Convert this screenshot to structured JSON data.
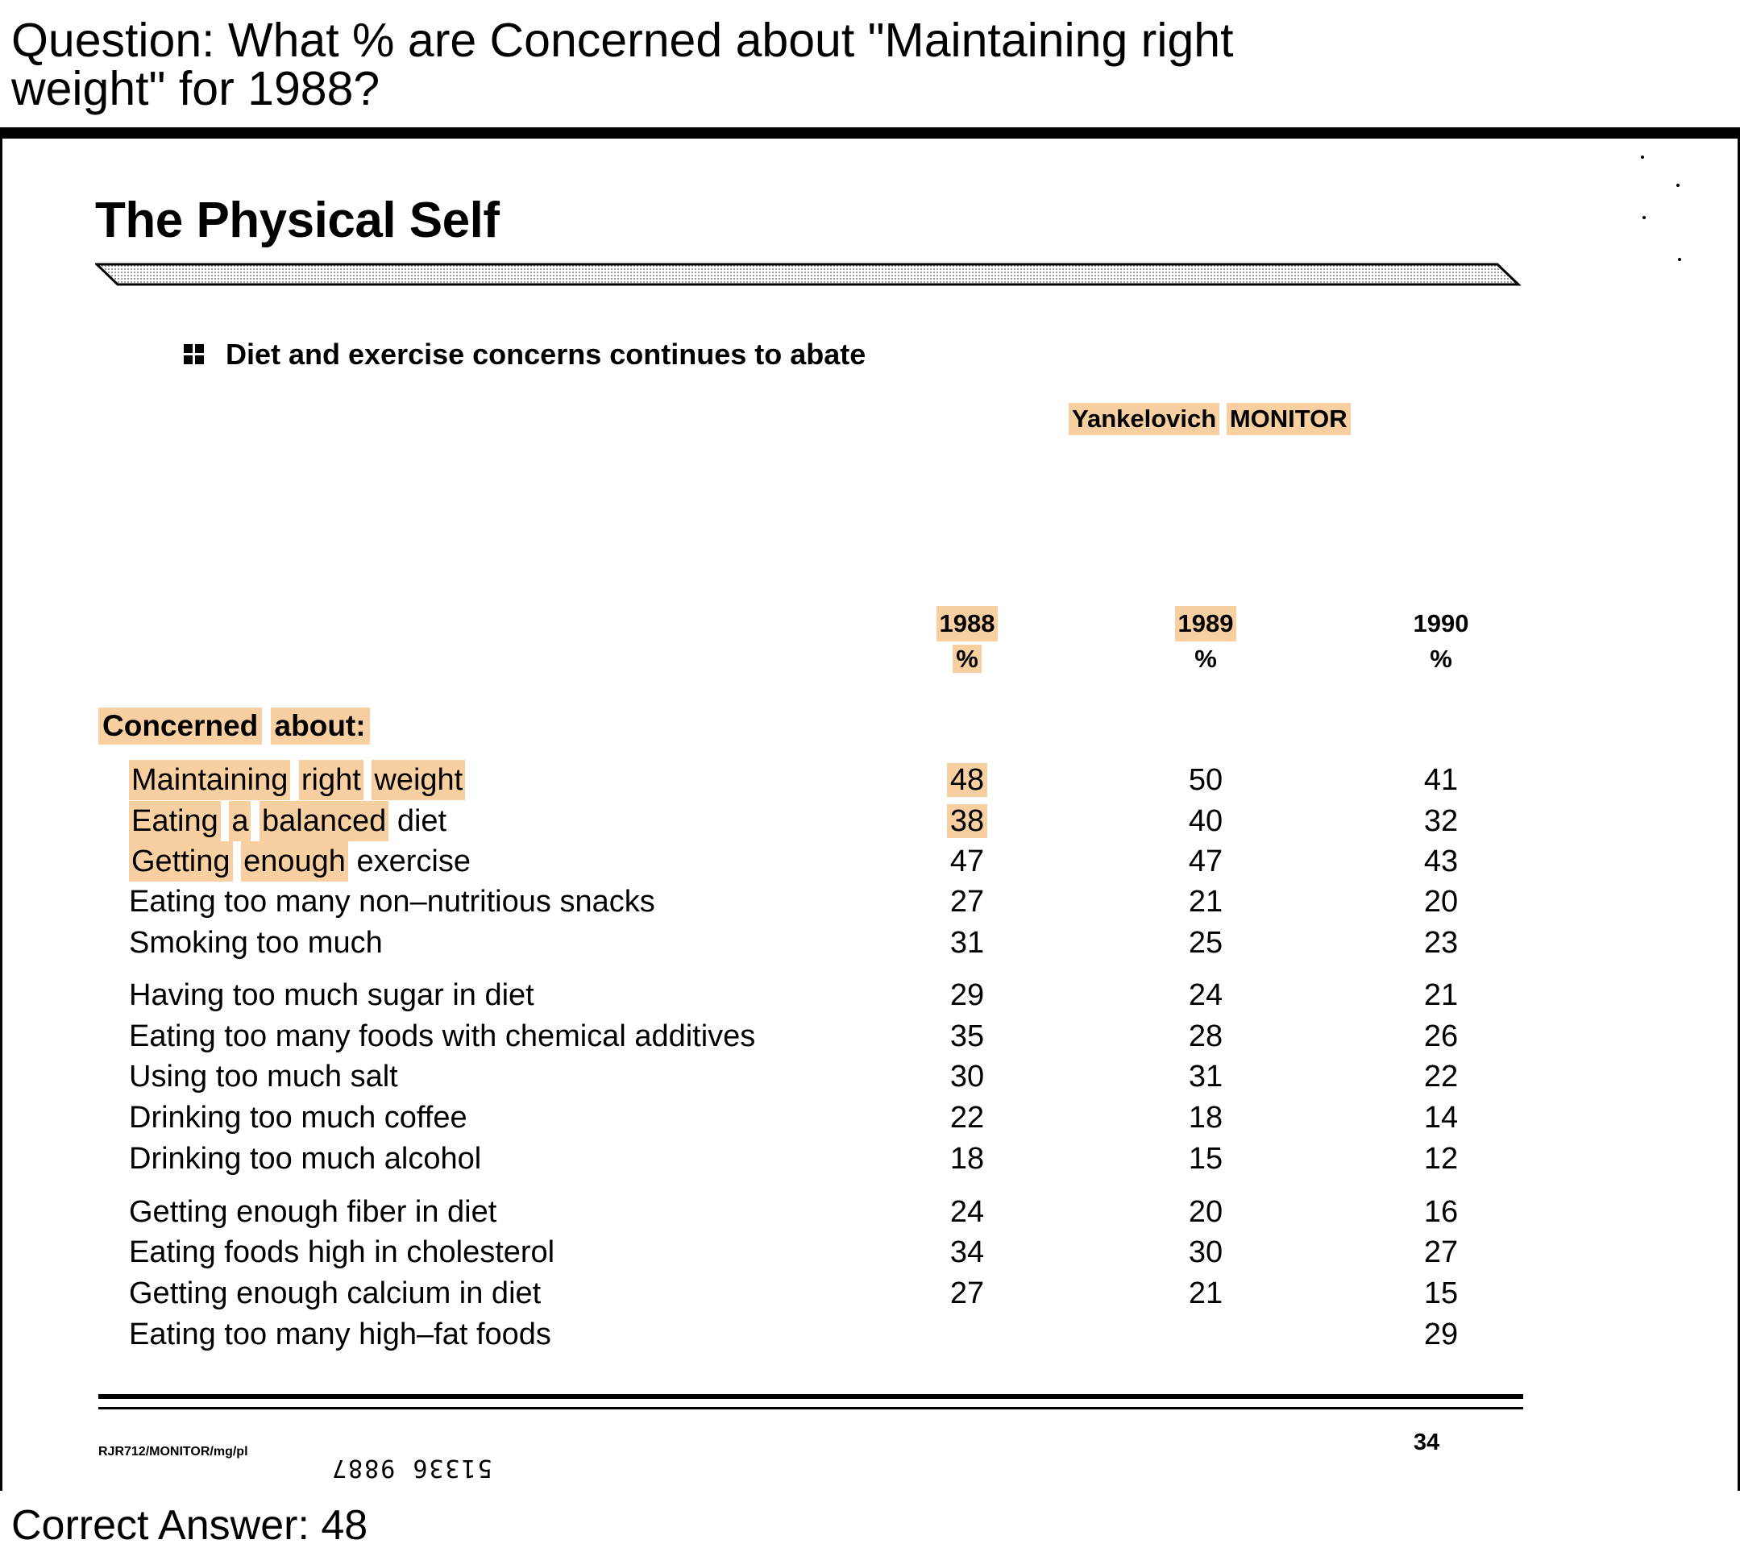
{
  "question": "Question: What % are Concerned about \"Maintaining right weight\" for 1988?",
  "answer": "Correct Answer: 48",
  "document": {
    "title": "The Physical Self",
    "subtitle": "Diet and exercise concerns continues to abate",
    "source": [
      "Yankelovich",
      "MONITOR"
    ],
    "columns": [
      {
        "year": "1988",
        "unit": "%"
      },
      {
        "year": "1989",
        "unit": "%"
      },
      {
        "year": "1990",
        "unit": "%"
      }
    ],
    "section_label": [
      "Concerned",
      "about:"
    ],
    "rows": [
      {
        "label": [
          "Maintaining",
          "right",
          "weight"
        ],
        "v1988": "48",
        "v1989": "50",
        "v1990": "41"
      },
      {
        "label": [
          "Eating",
          "a",
          "balanced",
          "diet"
        ],
        "v1988": "38",
        "v1989": "40",
        "v1990": "32"
      },
      {
        "label": [
          "Getting",
          "enough",
          "exercise"
        ],
        "v1988": "47",
        "v1989": "47",
        "v1990": "43"
      },
      {
        "label": [
          "Eating too many non–nutritious snacks"
        ],
        "v1988": "27",
        "v1989": "21",
        "v1990": "20"
      },
      {
        "label": [
          "Smoking too much"
        ],
        "v1988": "31",
        "v1989": "25",
        "v1990": "23"
      },
      {
        "label": [
          "Having too much sugar in diet"
        ],
        "v1988": "29",
        "v1989": "24",
        "v1990": "21"
      },
      {
        "label": [
          "Eating too many foods with chemical additives"
        ],
        "v1988": "35",
        "v1989": "28",
        "v1990": "26"
      },
      {
        "label": [
          "Using too much salt"
        ],
        "v1988": "30",
        "v1989": "31",
        "v1990": "22"
      },
      {
        "label": [
          "Drinking too much coffee"
        ],
        "v1988": "22",
        "v1989": "18",
        "v1990": "14"
      },
      {
        "label": [
          "Drinking too much alcohol"
        ],
        "v1988": "18",
        "v1989": "15",
        "v1990": "12"
      },
      {
        "label": [
          "Getting enough fiber in diet"
        ],
        "v1988": "24",
        "v1989": "20",
        "v1990": "16"
      },
      {
        "label": [
          "Eating foods high in cholesterol"
        ],
        "v1988": "34",
        "v1989": "30",
        "v1990": "27"
      },
      {
        "label": [
          "Getting enough calcium in diet"
        ],
        "v1988": "27",
        "v1989": "21",
        "v1990": "15"
      },
      {
        "label": [
          "Eating too many high–fat foods"
        ],
        "v1988": "",
        "v1989": "",
        "v1990": "29"
      }
    ],
    "footer_code": "RJR712/MONITOR/mg/pl",
    "footer_number": "51336 9887",
    "page_number": "34",
    "highlight_color": "#f8cfa0"
  }
}
